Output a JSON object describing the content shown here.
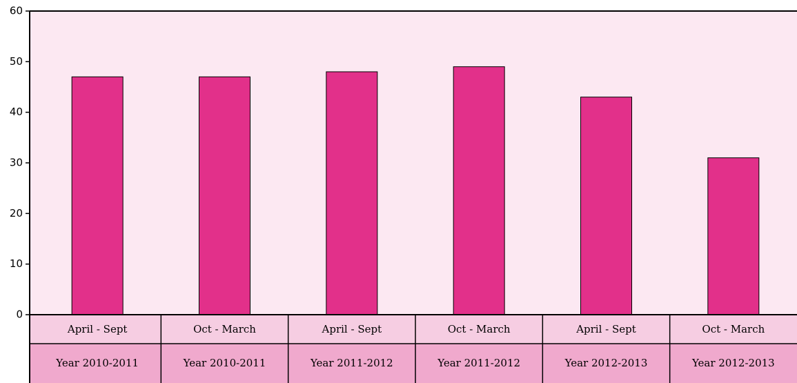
{
  "chart_data": {
    "type": "bar",
    "categories": [
      [
        "April - Sept",
        "Year 2010-2011"
      ],
      [
        "Oct - March",
        "Year 2010-2011"
      ],
      [
        "April - Sept",
        "Year 2011-2012"
      ],
      [
        "Oct - March",
        "Year 2011-2012"
      ],
      [
        "April - Sept",
        "Year 2012-2013"
      ],
      [
        "Oct - March",
        "Year 2012-2013"
      ]
    ],
    "values": [
      47,
      47,
      48,
      49,
      43,
      31
    ],
    "color": "#e2308a",
    "ylim": [
      0,
      60
    ],
    "yticks": [
      0,
      10,
      20,
      30,
      40,
      50,
      60
    ]
  }
}
